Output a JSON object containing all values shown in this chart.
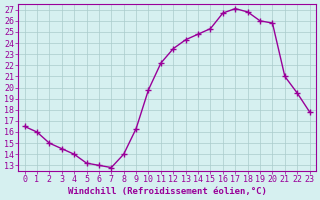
{
  "x": [
    0,
    1,
    2,
    3,
    4,
    5,
    6,
    7,
    8,
    9,
    10,
    11,
    12,
    13,
    14,
    15,
    16,
    17,
    18,
    19,
    20,
    21,
    22,
    23
  ],
  "y": [
    16.5,
    16.0,
    15.0,
    14.5,
    14.0,
    13.2,
    13.0,
    12.8,
    14.0,
    16.3,
    19.8,
    22.2,
    23.5,
    24.3,
    24.8,
    25.3,
    26.7,
    27.1,
    26.8,
    26.0,
    25.8,
    21.0,
    19.5,
    17.8
  ],
  "line_color": "#990099",
  "marker": "+",
  "marker_size": 4,
  "marker_lw": 1.0,
  "bg_color": "#d6f0f0",
  "grid_color": "#aacccc",
  "xlabel": "Windchill (Refroidissement éolien,°C)",
  "ylabel": "",
  "xlim": [
    -0.5,
    23.5
  ],
  "ylim": [
    12.5,
    27.5
  ],
  "yticks": [
    13,
    14,
    15,
    16,
    17,
    18,
    19,
    20,
    21,
    22,
    23,
    24,
    25,
    26,
    27
  ],
  "xticks": [
    0,
    1,
    2,
    3,
    4,
    5,
    6,
    7,
    8,
    9,
    10,
    11,
    12,
    13,
    14,
    15,
    16,
    17,
    18,
    19,
    20,
    21,
    22,
    23
  ],
  "tick_color": "#990099",
  "label_color": "#990099",
  "spine_color": "#990099",
  "font_size": 6,
  "xlabel_font_size": 6.5
}
